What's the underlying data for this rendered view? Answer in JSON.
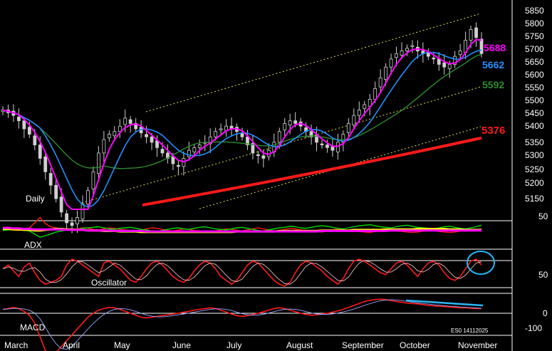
{
  "chart_data": [
    {
      "panel": "price",
      "type": "candlestick",
      "label": "Daily",
      "y_ticks": [
        5150,
        5200,
        5250,
        5300,
        5350,
        5400,
        5450,
        5500,
        5550,
        5600,
        5650,
        5700,
        5750,
        5800,
        5850
      ],
      "ylim": [
        5120,
        5870
      ],
      "grid": false,
      "series": [
        {
          "name": "",
          "color": "#ff00ff",
          "last_label": "5688"
        },
        {
          "name": "",
          "color": "#1e90ff",
          "last_label": "5662"
        },
        {
          "name": "",
          "color": "#2e8b2e",
          "last_label": "5592"
        },
        {
          "name": "",
          "color": "#ff1a1a",
          "last_label": "5376"
        }
      ],
      "close_series": [
        5480,
        5470,
        5460,
        5440,
        5410,
        5390,
        5350,
        5300,
        5250,
        5200,
        5150,
        5100,
        5060,
        5050,
        5080,
        5130,
        5180,
        5250,
        5320,
        5370,
        5390,
        5400,
        5420,
        5450,
        5430,
        5410,
        5395,
        5380,
        5360,
        5340,
        5320,
        5300,
        5280,
        5270,
        5300,
        5330,
        5340,
        5350,
        5360,
        5380,
        5400,
        5410,
        5420,
        5410,
        5400,
        5380,
        5350,
        5320,
        5310,
        5300,
        5330,
        5360,
        5400,
        5430,
        5440,
        5430,
        5420,
        5400,
        5380,
        5360,
        5350,
        5340,
        5330,
        5360,
        5390,
        5430,
        5460,
        5480,
        5500,
        5520,
        5560,
        5600,
        5640,
        5670,
        5690,
        5700,
        5710,
        5720,
        5700,
        5690,
        5680,
        5670,
        5650,
        5640,
        5650,
        5680,
        5700,
        5740,
        5780,
        5750,
        5690
      ]
    },
    {
      "panel": "adx",
      "type": "line",
      "label": "ADX",
      "y_ticks": [
        50
      ],
      "series": [
        {
          "name": "",
          "color": "#ff1a1a",
          "values": [
            30,
            28,
            26,
            25,
            27,
            30,
            40,
            50,
            38,
            32,
            30,
            28,
            27,
            26,
            28,
            30,
            29,
            27,
            26,
            28,
            30,
            29,
            27,
            26,
            25,
            24,
            26,
            28,
            30,
            29,
            27,
            25,
            24,
            26,
            28,
            27,
            25,
            24,
            23,
            22,
            24,
            26,
            28,
            27,
            25,
            24,
            26,
            28,
            30,
            28,
            26,
            24,
            25,
            27,
            29,
            28,
            26,
            25,
            24,
            23,
            22,
            24,
            26,
            28,
            27,
            25,
            24,
            23,
            22,
            21,
            23,
            25,
            27,
            26,
            24,
            23,
            22,
            21,
            22,
            24,
            26,
            25,
            23,
            22,
            21,
            22,
            24,
            26,
            25,
            24,
            28
          ]
        },
        {
          "name": "",
          "color": "#00dd00",
          "values": [
            25,
            26,
            27,
            28,
            26,
            24,
            18,
            12,
            15,
            18,
            22,
            24,
            26,
            28,
            27,
            29,
            30,
            31,
            32,
            30,
            28,
            27,
            29,
            30,
            31,
            29,
            27,
            26,
            24,
            23,
            25,
            27,
            29,
            30,
            28,
            27,
            29,
            31,
            32,
            30,
            28,
            27,
            26,
            28,
            30,
            31,
            29,
            27,
            25,
            24,
            26,
            28,
            30,
            31,
            33,
            32,
            30,
            29,
            31,
            33,
            34,
            33,
            31,
            29,
            28,
            30,
            32,
            34,
            35,
            36,
            34,
            32,
            31,
            30,
            32,
            34,
            35,
            33,
            31,
            30,
            29,
            28,
            30,
            32,
            33,
            31,
            29,
            28,
            30,
            32,
            35
          ]
        },
        {
          "name": "",
          "color": "#ffff00",
          "values": [
            28,
            28,
            27,
            27,
            26,
            26,
            25,
            25,
            26,
            27,
            28,
            28,
            27,
            27,
            26,
            26,
            25,
            25,
            25,
            24,
            24,
            24,
            23,
            23,
            23,
            23,
            22,
            22,
            22,
            22,
            22,
            22,
            22,
            22,
            22,
            22,
            22,
            22,
            22,
            22,
            22,
            22,
            22,
            22,
            23,
            23,
            23,
            23,
            23,
            23,
            23,
            23,
            24,
            24,
            24,
            24,
            24,
            24,
            24,
            24,
            25,
            25,
            25,
            25,
            25,
            25,
            26,
            26,
            26,
            26,
            26,
            26,
            27,
            27,
            27,
            27,
            27,
            27,
            28,
            28,
            28,
            28,
            28,
            28,
            27,
            27,
            27,
            26,
            26,
            26,
            26
          ]
        },
        {
          "name": "",
          "color": "#ff00ff",
          "values": [
            30,
            30,
            29,
            29,
            28,
            28,
            27,
            27,
            27,
            27,
            27,
            27,
            26,
            26,
            26,
            26,
            25,
            25,
            25,
            25,
            25,
            24,
            24,
            24,
            24,
            24,
            24,
            23,
            23,
            23,
            23,
            23,
            23,
            23,
            23,
            23,
            23,
            23,
            23,
            23,
            23,
            23,
            23,
            23,
            23,
            23,
            23,
            23,
            23,
            23,
            23,
            23,
            23,
            23,
            23,
            23,
            23,
            23,
            23,
            23,
            24,
            24,
            24,
            24,
            24,
            24,
            24,
            24,
            24,
            24,
            24,
            24,
            24,
            25,
            25,
            25,
            25,
            25,
            25,
            25,
            25,
            25,
            25,
            25,
            25,
            25,
            25,
            25,
            25,
            25,
            25
          ]
        }
      ]
    },
    {
      "panel": "oscillator",
      "type": "line",
      "label": "Oscillator",
      "y_ticks": [
        50
      ],
      "reference_lines": [
        80,
        20
      ],
      "series": [
        {
          "name": "",
          "color": "#ff1a1a",
          "values": [
            60,
            70,
            55,
            40,
            65,
            75,
            50,
            30,
            20,
            25,
            30,
            40,
            70,
            85,
            80,
            70,
            60,
            50,
            40,
            75,
            80,
            70,
            60,
            45,
            30,
            25,
            40,
            60,
            75,
            80,
            70,
            55,
            40,
            30,
            25,
            35,
            55,
            70,
            80,
            75,
            60,
            40,
            30,
            20,
            30,
            50,
            70,
            80,
            75,
            60,
            45,
            30,
            20,
            15,
            25,
            50,
            70,
            80,
            75,
            65,
            55,
            40,
            30,
            20,
            35,
            60,
            80,
            85,
            80,
            70,
            60,
            50,
            45,
            60,
            75,
            80,
            70,
            55,
            40,
            60,
            75,
            80,
            70,
            50,
            35,
            30,
            40,
            60,
            80,
            85,
            70
          ]
        }
      ]
    },
    {
      "panel": "macd",
      "type": "line",
      "label": "MACD",
      "y_ticks": [
        0,
        -100
      ],
      "series": [
        {
          "name": "",
          "color": "#ff1a1a",
          "values": [
            10,
            12,
            15,
            12,
            5,
            -5,
            -25,
            -60,
            -95,
            -110,
            -100,
            -85,
            -70,
            -55,
            -40,
            -25,
            -10,
            0,
            8,
            12,
            15,
            14,
            10,
            5,
            0,
            -5,
            -10,
            -12,
            -10,
            -8,
            -6,
            -4,
            -2,
            0,
            3,
            5,
            8,
            10,
            12,
            14,
            12,
            8,
            3,
            -2,
            -6,
            -8,
            -6,
            -3,
            0,
            4,
            8,
            12,
            14,
            12,
            8,
            4,
            0,
            -3,
            -5,
            -4,
            -2,
            0,
            3,
            6,
            10,
            15,
            20,
            25,
            30,
            33,
            35,
            36,
            35,
            33,
            30,
            28,
            26,
            25,
            24,
            22,
            20,
            19,
            18,
            17,
            16,
            15,
            14,
            14,
            13,
            12,
            12
          ]
        }
      ]
    }
  ],
  "x_labels": [
    "March",
    "April",
    "May",
    "June",
    "July",
    "August",
    "September",
    "October",
    "November"
  ],
  "footer_code": "ES0 14112025"
}
